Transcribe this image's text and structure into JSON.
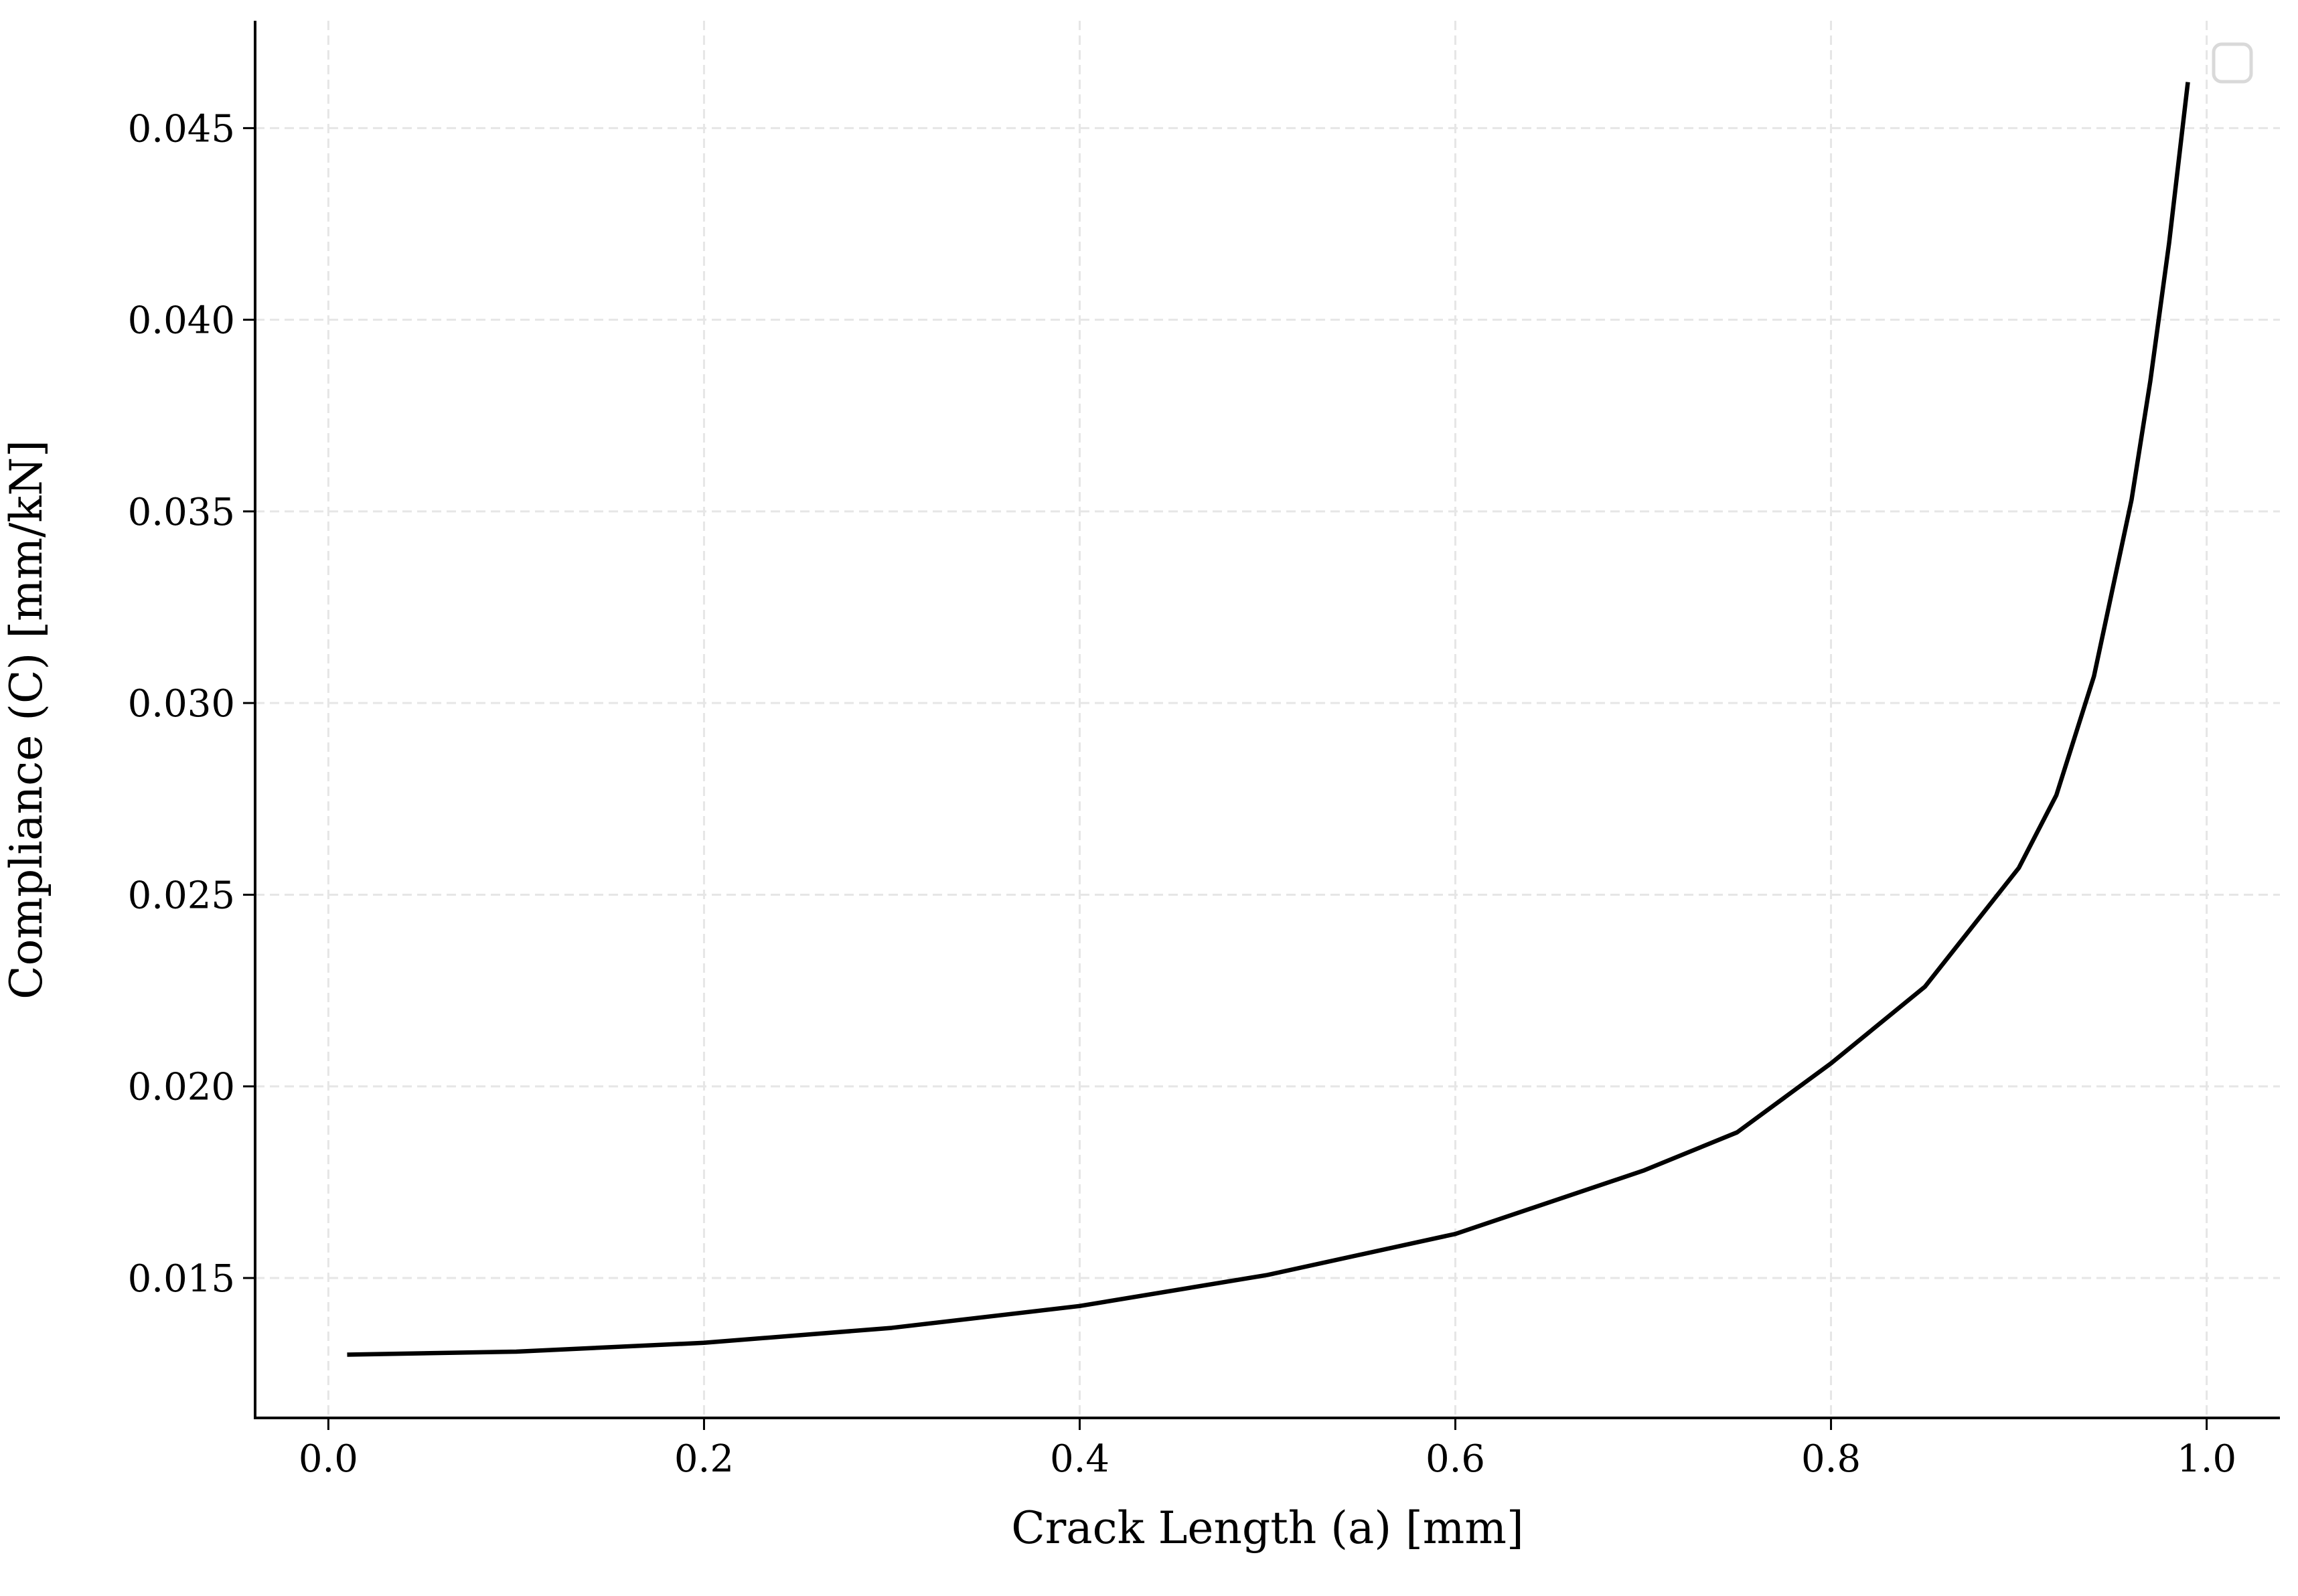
{
  "chart_data": {
    "type": "line",
    "xlabel": "Crack Length (a) [mm]",
    "ylabel": "Compliance (C) [mm/kN]",
    "x": [
      0.01,
      0.1,
      0.2,
      0.3,
      0.4,
      0.5,
      0.6,
      0.7,
      0.75,
      0.8,
      0.85,
      0.9,
      0.92,
      0.94,
      0.96,
      0.97,
      0.98,
      0.99
    ],
    "series": [
      {
        "color": "#000000",
        "values": [
          0.013,
          0.01308,
          0.01331,
          0.0137,
          0.01427,
          0.01508,
          0.01615,
          0.0178,
          0.0188,
          0.0206,
          0.0226,
          0.0257,
          0.0276,
          0.0307,
          0.0353,
          0.0384,
          0.042,
          0.0462
        ]
      }
    ],
    "xlim": [
      -0.039,
      1.039
    ],
    "ylim": [
      0.01135,
      0.0478
    ],
    "xticks": [
      {
        "value": 0,
        "label": "0.0"
      },
      0.2,
      0.4,
      0.6,
      0.8,
      {
        "value": 1,
        "label": "1.0"
      }
    ],
    "yticks": [
      0.015,
      {
        "value": 0.02,
        "label": "0.020"
      },
      0.025,
      {
        "value": 0.03,
        "label": "0.030"
      },
      0.035,
      {
        "value": 0.04,
        "label": "0.040"
      },
      0.045
    ],
    "grid": true
  }
}
